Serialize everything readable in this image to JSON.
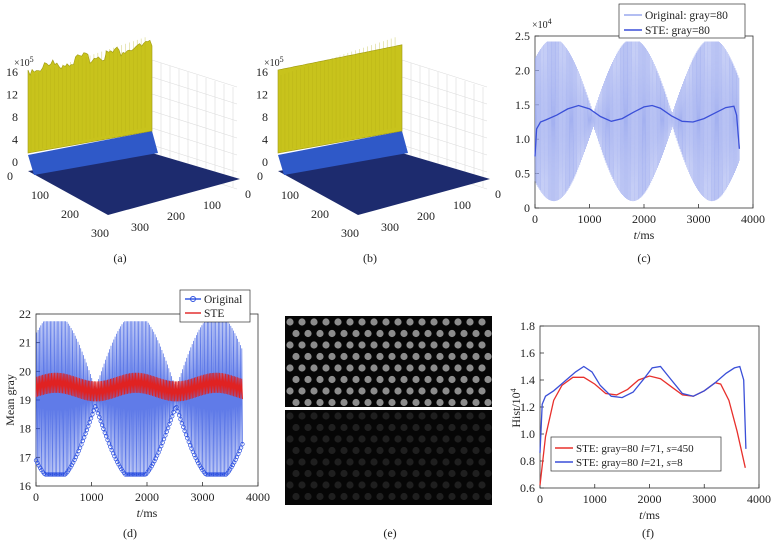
{
  "chart_data": [
    {
      "id": "a",
      "type": "surface3d",
      "caption": "(a)",
      "z_ticks": [
        "16",
        "12",
        "8",
        "4",
        "0"
      ],
      "z_exponent": "×10",
      "z_exponent_power": "5",
      "x_ticks": [
        "0",
        "100",
        "200",
        "300"
      ],
      "y_ticks": [
        "0",
        "100",
        "200",
        "300"
      ],
      "surface_color": "#c8c31c",
      "base_color": "#1d2b6e",
      "ridge_color": "#2f59c8",
      "zlim": [
        0,
        16
      ]
    },
    {
      "id": "b",
      "type": "surface3d",
      "caption": "(b)",
      "z_ticks": [
        "16",
        "12",
        "8",
        "4",
        "0"
      ],
      "z_exponent": "×10",
      "z_exponent_power": "5",
      "x_ticks": [
        "0",
        "100",
        "200",
        "300"
      ],
      "y_ticks": [
        "0",
        "100",
        "200",
        "300"
      ],
      "surface_color": "#c8c31c",
      "base_color": "#1d2b6e",
      "ridge_color": "#2f59c8",
      "zlim": [
        0,
        16
      ]
    },
    {
      "id": "c",
      "type": "line",
      "caption": "(c)",
      "xlabel_var": "t",
      "xlabel_unit": "/ms",
      "ylabel": "",
      "xlim": [
        0,
        4000
      ],
      "ylim": [
        0,
        2.5
      ],
      "x_ticks": [
        0,
        1000,
        2000,
        3000,
        4000
      ],
      "y_ticks": [
        "0",
        "0.5",
        "1.0",
        "1.5",
        "2.0",
        "2.5"
      ],
      "y_exponent": "×10",
      "y_exponent_power": "4",
      "legend_position": "top-right",
      "series": [
        {
          "name": "Original: gray=80",
          "color": "#9aa8ee",
          "style": "oscillating",
          "center": 1.28,
          "envelope_amp": 1.08,
          "envelope_period_ms": 1450,
          "x_range": [
            0,
            3750
          ]
        },
        {
          "name": "STE: gray=80",
          "color": "#3a4fd8",
          "x": [
            0,
            30,
            100,
            200,
            400,
            600,
            800,
            1000,
            1200,
            1400,
            1600,
            1800,
            2000,
            2150,
            2300,
            2500,
            2700,
            2900,
            3100,
            3300,
            3500,
            3650,
            3700,
            3750
          ],
          "y": [
            0.75,
            1.15,
            1.25,
            1.28,
            1.35,
            1.44,
            1.49,
            1.44,
            1.33,
            1.26,
            1.3,
            1.39,
            1.47,
            1.49,
            1.45,
            1.34,
            1.26,
            1.25,
            1.3,
            1.38,
            1.46,
            1.48,
            1.35,
            0.86
          ]
        }
      ]
    },
    {
      "id": "d",
      "type": "line",
      "caption": "(d)",
      "xlabel_var": "t",
      "xlabel_unit": "/ms",
      "ylabel": "Mean gray",
      "xlim": [
        0,
        4000
      ],
      "ylim": [
        16,
        22
      ],
      "x_ticks": [
        0,
        1000,
        2000,
        3000,
        4000
      ],
      "y_ticks": [
        16,
        17,
        18,
        19,
        20,
        21,
        22
      ],
      "legend_position": "top-right",
      "series": [
        {
          "name": "Original",
          "color": "#2b4fe0",
          "marker": "circle",
          "style": "oscillating",
          "center": 19.1,
          "envelope_amp": 2.6,
          "envelope_period_ms": 1450,
          "x_range": [
            0,
            3720
          ]
        },
        {
          "name": "STE",
          "color": "#e02222",
          "center": 19.45,
          "band": 0.35,
          "x_range": [
            0,
            3720
          ]
        }
      ]
    },
    {
      "id": "e",
      "type": "image",
      "caption": "(e)",
      "panels": [
        {
          "position": "top",
          "dot_brightness": 0.55
        },
        {
          "position": "bottom",
          "dot_brightness": 0.12
        }
      ]
    },
    {
      "id": "f",
      "type": "line",
      "caption": "(f)",
      "xlabel_var": "t",
      "xlabel_unit": "/ms",
      "ylabel_main": "Hist/10",
      "ylabel_power": "4",
      "xlim": [
        0,
        4000
      ],
      "ylim": [
        0.6,
        1.8
      ],
      "x_ticks": [
        0,
        1000,
        2000,
        3000,
        4000
      ],
      "y_ticks": [
        "0.6",
        "0.8",
        "1.0",
        "1.2",
        "1.4",
        "1.6",
        "1.8"
      ],
      "legend_position": "bottom-right",
      "series": [
        {
          "name_prefix": "STE: gray=80  ",
          "name_l_label": "l",
          "name_l_value": "=71, ",
          "name_s_label": "s",
          "name_s_value": "=450",
          "color": "#e8302c",
          "x": [
            0,
            100,
            250,
            400,
            600,
            800,
            1000,
            1200,
            1400,
            1600,
            1800,
            2000,
            2200,
            2400,
            2600,
            2800,
            3000,
            3200,
            3300,
            3450,
            3600,
            3750
          ],
          "y": [
            0.62,
            0.98,
            1.25,
            1.36,
            1.42,
            1.42,
            1.37,
            1.3,
            1.29,
            1.33,
            1.4,
            1.43,
            1.41,
            1.35,
            1.29,
            1.28,
            1.32,
            1.38,
            1.37,
            1.25,
            1.02,
            0.75
          ]
        },
        {
          "name_prefix": "STE: gray=80  ",
          "name_l_label": "l",
          "name_l_value": "=21, ",
          "name_s_label": "s",
          "name_s_value": "=8",
          "color": "#3a4fd8",
          "x": [
            0,
            40,
            100,
            250,
            450,
            650,
            800,
            950,
            1100,
            1300,
            1500,
            1700,
            1900,
            2050,
            2200,
            2400,
            2600,
            2800,
            3000,
            3200,
            3400,
            3550,
            3650,
            3720,
            3760
          ],
          "y": [
            0.86,
            1.22,
            1.28,
            1.32,
            1.39,
            1.46,
            1.5,
            1.46,
            1.36,
            1.28,
            1.27,
            1.31,
            1.41,
            1.49,
            1.5,
            1.4,
            1.3,
            1.28,
            1.32,
            1.38,
            1.45,
            1.49,
            1.5,
            1.4,
            0.89
          ]
        }
      ]
    }
  ]
}
